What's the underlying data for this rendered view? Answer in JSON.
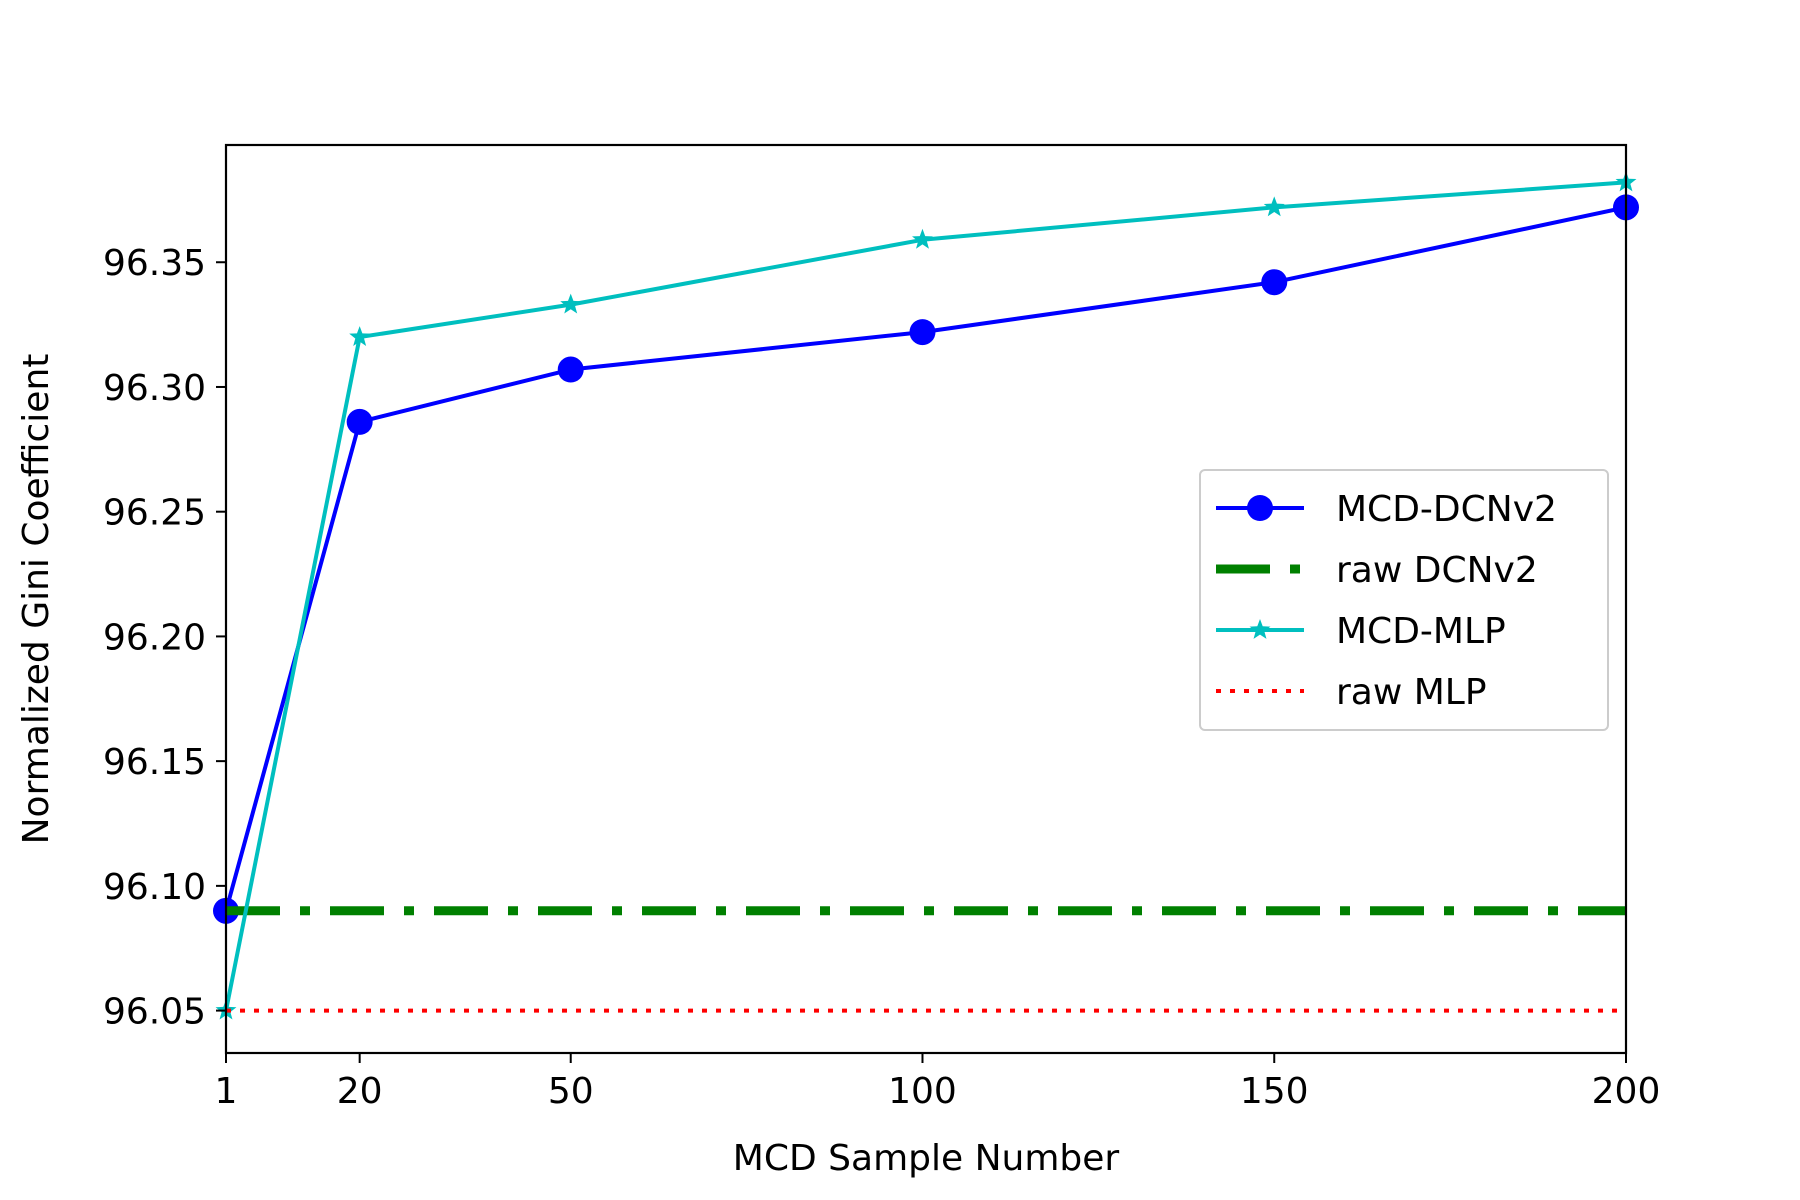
{
  "chart_data": {
    "type": "line",
    "title": "",
    "xlabel": "MCD Sample Number",
    "ylabel": "Normalized Gini Coefficient",
    "xlim": [
      1,
      200
    ],
    "ylim": [
      96.033,
      96.397
    ],
    "x_ticks": [
      1,
      20,
      50,
      100,
      150,
      200
    ],
    "x_tick_labels": [
      "1",
      "20",
      "50",
      "100",
      "150",
      "200"
    ],
    "y_ticks": [
      96.05,
      96.1,
      96.15,
      96.2,
      96.25,
      96.3,
      96.35
    ],
    "y_tick_labels": [
      "96.05",
      "96.10",
      "96.15",
      "96.20",
      "96.25",
      "96.30",
      "96.35"
    ],
    "grid": false,
    "legend_position": "center-right",
    "x": [
      1,
      20,
      50,
      100,
      150,
      200
    ],
    "series": [
      {
        "name": "MCD-DCNv2",
        "values": [
          96.09,
          96.286,
          96.307,
          96.322,
          96.342,
          96.372
        ],
        "color": "#0000ff",
        "line_style": "solid",
        "marker": "circle"
      },
      {
        "name": "raw DCNv2",
        "values": [
          96.09,
          96.09,
          96.09,
          96.09,
          96.09,
          96.09
        ],
        "color": "#008000",
        "line_style": "dashdot",
        "marker": "none"
      },
      {
        "name": "MCD-MLP",
        "values": [
          96.05,
          96.32,
          96.333,
          96.359,
          96.372,
          96.382
        ],
        "color": "#00bfbf",
        "line_style": "solid",
        "marker": "star"
      },
      {
        "name": "raw MLP",
        "values": [
          96.05,
          96.05,
          96.05,
          96.05,
          96.05,
          96.05
        ],
        "color": "#ff0000",
        "line_style": "dotted",
        "marker": "none"
      }
    ]
  }
}
